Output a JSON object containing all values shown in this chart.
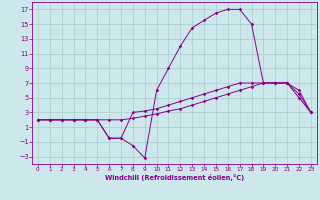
{
  "xlabel": "Windchill (Refroidissement éolien,°C)",
  "background_color": "#cce8ec",
  "grid_color": "#aacccc",
  "line_color": "#880088",
  "xlim": [
    -0.5,
    23.5
  ],
  "ylim": [
    -4,
    18
  ],
  "xticks": [
    0,
    1,
    2,
    3,
    4,
    5,
    6,
    7,
    8,
    9,
    10,
    11,
    12,
    13,
    14,
    15,
    16,
    17,
    18,
    19,
    20,
    21,
    22,
    23
  ],
  "yticks": [
    -3,
    -1,
    1,
    3,
    5,
    7,
    9,
    11,
    13,
    15,
    17
  ],
  "series_big_x": [
    0,
    1,
    2,
    3,
    4,
    5,
    6,
    7,
    8,
    9,
    10,
    11,
    12,
    13,
    14,
    15,
    16,
    17,
    18,
    19,
    20,
    21,
    22,
    23
  ],
  "series_big_y": [
    2,
    2,
    2,
    2,
    2,
    2,
    -0.5,
    -0.5,
    -1.5,
    -3.2,
    6,
    9,
    12,
    14.5,
    15.5,
    16.5,
    17,
    17,
    15,
    7,
    7,
    7,
    5,
    3
  ],
  "series_mid_x": [
    0,
    1,
    2,
    3,
    4,
    5,
    6,
    7,
    8,
    9,
    10,
    11,
    12,
    13,
    14,
    15,
    16,
    17,
    18,
    19,
    20,
    21,
    22,
    23
  ],
  "series_mid_y": [
    2,
    2,
    2,
    2,
    2,
    2,
    -0.5,
    -0.5,
    3.0,
    3.2,
    3.5,
    4,
    4.5,
    5,
    5.5,
    6,
    6.5,
    7,
    7,
    7,
    7,
    7,
    5.5,
    3
  ],
  "series_flat_x": [
    0,
    1,
    2,
    3,
    4,
    5,
    6,
    7,
    8,
    9,
    10,
    11,
    12,
    13,
    14,
    15,
    16,
    17,
    18,
    19,
    20,
    21,
    22,
    23
  ],
  "series_flat_y": [
    2,
    2,
    2,
    2,
    2,
    2,
    2.0,
    2.0,
    2.2,
    2.5,
    2.8,
    3.2,
    3.5,
    4,
    4.5,
    5,
    5.5,
    6,
    6.5,
    7,
    7,
    7,
    6,
    3
  ]
}
